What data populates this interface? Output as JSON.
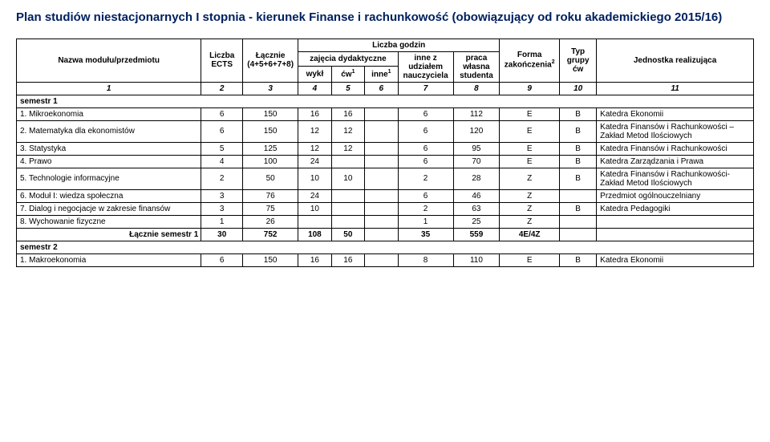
{
  "title": "Plan studiów niestacjonarnych I stopnia - kierunek Finanse i rachunkowość (obowiązujący od roku akademickiego 2015/16)",
  "headers": {
    "nazwa": "Nazwa modułu/przedmiotu",
    "ects": "Liczba ECTS",
    "lacznie": "Łącznie (4+5+6+7+8)",
    "godzin": "Liczba godzin",
    "zajecia": "zajęcia dydaktyczne",
    "wykl": "wykł",
    "cw": "ćw",
    "inne": "inne",
    "inneZ": "inne z udziałem nauczyciela",
    "praca": "praca własna studenta",
    "forma": "Forma zakończenia",
    "typ": "Typ grupy ćw",
    "jednostka": "Jednostka realizująca"
  },
  "colnums": [
    "1",
    "2",
    "3",
    "4",
    "5",
    "6",
    "7",
    "8",
    "9",
    "10",
    "11"
  ],
  "sem1label": "semestr 1",
  "sem2label": "semestr 2",
  "sumlabel": "Łącznie semestr 1",
  "rows1": [
    {
      "n": "1. Mikroekonomia",
      "ects": "6",
      "lac": "150",
      "wyk": "16",
      "cw": "16",
      "inne": "",
      "inneZ": "6",
      "praca": "112",
      "forma": "E",
      "typ": "B",
      "jed": "Katedra Ekonomii"
    },
    {
      "n": "2. Matematyka dla ekonomistów",
      "ects": "6",
      "lac": "150",
      "wyk": "12",
      "cw": "12",
      "inne": "",
      "inneZ": "6",
      "praca": "120",
      "forma": "E",
      "typ": "B",
      "jed": "Katedra Finansów i Rachunkowości – Zakład Metod Ilościowych"
    },
    {
      "n": "3. Statystyka",
      "ects": "5",
      "lac": "125",
      "wyk": "12",
      "cw": "12",
      "inne": "",
      "inneZ": "6",
      "praca": "95",
      "forma": "E",
      "typ": "B",
      "jed": "Katedra Finansów i Rachunkowości"
    },
    {
      "n": "4. Prawo",
      "ects": "4",
      "lac": "100",
      "wyk": "24",
      "cw": "",
      "inne": "",
      "inneZ": "6",
      "praca": "70",
      "forma": "E",
      "typ": "B",
      "jed": "Katedra Zarządzania i Prawa"
    },
    {
      "n": "5. Technologie informacyjne",
      "ects": "2",
      "lac": "50",
      "wyk": "10",
      "cw": "10",
      "inne": "",
      "inneZ": "2",
      "praca": "28",
      "forma": "Z",
      "typ": "B",
      "jed": "Katedra Finansów i Rachunkowości-Zakład Metod Ilościowych"
    },
    {
      "n": "6. Moduł I: wiedza społeczna",
      "ects": "3",
      "lac": "76",
      "wyk": "24",
      "cw": "",
      "inne": "",
      "inneZ": "6",
      "praca": "46",
      "forma": "Z",
      "typ": "",
      "jed": "Przedmiot ogólnouczelniany"
    },
    {
      "n": "7. Dialog i negocjacje w zakresie finansów",
      "ects": "3",
      "lac": "75",
      "wyk": "10",
      "cw": "",
      "inne": "",
      "inneZ": "2",
      "praca": "63",
      "forma": "Z",
      "typ": "B",
      "jed": "Katedra Pedagogiki"
    },
    {
      "n": "8. Wychowanie fizyczne",
      "ects": "1",
      "lac": "26",
      "wyk": "",
      "cw": "",
      "inne": "",
      "inneZ": "1",
      "praca": "25",
      "forma": "Z",
      "typ": "",
      "jed": ""
    }
  ],
  "sum1": {
    "ects": "30",
    "lac": "752",
    "wyk": "108",
    "cw": "50",
    "inne": "",
    "inneZ": "35",
    "praca": "559",
    "forma": "4E/4Z",
    "typ": "",
    "jed": ""
  },
  "rows2": [
    {
      "n": "1. Makroekonomia",
      "ects": "6",
      "lac": "150",
      "wyk": "16",
      "cw": "16",
      "inne": "",
      "inneZ": "8",
      "praca": "110",
      "forma": "E",
      "typ": "B",
      "jed": "Katedra Ekonomii"
    }
  ]
}
